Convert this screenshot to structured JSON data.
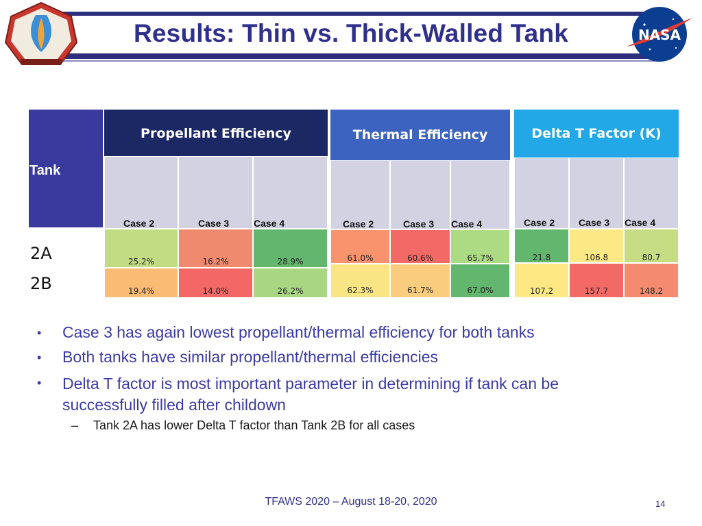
{
  "title": "Results: Thin vs. Thick-Walled Tank",
  "logos": {
    "left": "Thermal & Fluids Analysis Workshop",
    "right": "NASA"
  },
  "table": {
    "tank_label": "Tank",
    "rows": [
      "2A",
      "2B"
    ],
    "groups": [
      {
        "title": "Propellant Efficiency",
        "cases": [
          "Case 2",
          "Case 3",
          "Case 4"
        ],
        "values": [
          [
            "25.2%",
            "16.2%",
            "28.9%"
          ],
          [
            "19.4%",
            "14.0%",
            "26.2%"
          ]
        ],
        "colors": [
          [
            "#c2dc84",
            "#f08a6e",
            "#62b66e"
          ],
          [
            "#fabb74",
            "#f36866",
            "#a9d683"
          ]
        ]
      },
      {
        "title": "Thermal Efficiency",
        "cases": [
          "Case 2",
          "Case 3",
          "Case 4"
        ],
        "values": [
          [
            "61.0%",
            "60.6%",
            "65.7%"
          ],
          [
            "62.3%",
            "61.7%",
            "67.0%"
          ]
        ],
        "colors": [
          [
            "#f8936e",
            "#f36966",
            "#addb84"
          ],
          [
            "#f9e584",
            "#facc7d",
            "#62b66e"
          ]
        ]
      },
      {
        "title": "Delta T Factor (K)",
        "cases": [
          "Case 2",
          "Case 3",
          "Case 4"
        ],
        "values": [
          [
            "21.8",
            "106.8",
            "80.7"
          ],
          [
            "107.2",
            "157.7",
            "148.2"
          ]
        ],
        "colors": [
          [
            "#62b66e",
            "#fce884",
            "#c6dd84"
          ],
          [
            "#fde883",
            "#f36966",
            "#f58b6e"
          ]
        ]
      }
    ]
  },
  "bullets": [
    "Case 3 has again lowest propellant/thermal efficiency for both tanks",
    "Both tanks have similar propellant/thermal efficiencies",
    "Delta T factor is most important parameter in determining if tank can be successfully filled after childown"
  ],
  "bullet_marker": "•",
  "sub_bullet_marker": "–",
  "sub_bullet": "Tank 2A has lower Delta T factor than Tank 2B for all cases",
  "footer": "TFAWS 2020 – August 18-20, 2020",
  "page_number": "14"
}
